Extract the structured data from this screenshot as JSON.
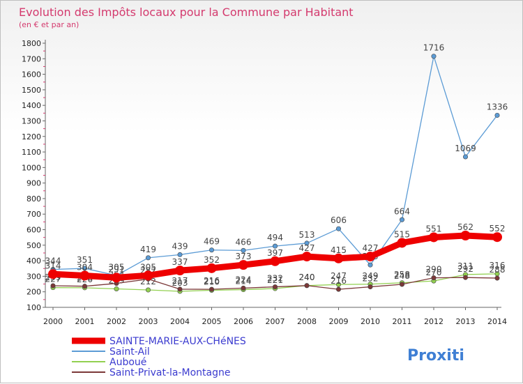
{
  "chart_data": {
    "type": "line",
    "title": "Evolution des Impôts locaux pour la Commune par Habitant",
    "subtitle": "(en € et par an)",
    "xlabel": "",
    "ylabel": "",
    "ylim": [
      100,
      1800
    ],
    "yticks": [
      100,
      200,
      300,
      400,
      500,
      600,
      700,
      800,
      900,
      1000,
      1100,
      1200,
      1300,
      1400,
      1500,
      1600,
      1700,
      1800
    ],
    "grid": false,
    "legend_position": "bottom-left",
    "categories": [
      "2000",
      "2001",
      "2002",
      "2003",
      "2004",
      "2005",
      "2006",
      "2007",
      "2008",
      "2009",
      "2010",
      "2011",
      "2012",
      "2013",
      "2014"
    ],
    "series": [
      {
        "name": "SAINTE-MARIE-AUX-CHéNES",
        "color": "#ee0000",
        "values": [
          314,
          304,
          291,
          305,
          337,
          352,
          373,
          397,
          427,
          415,
          427,
          515,
          551,
          562,
          552
        ]
      },
      {
        "name": "Saint-Ail",
        "color": "#5b9bd5",
        "values": [
          344,
          351,
          305,
          419,
          439,
          469,
          466,
          494,
          513,
          606,
          373,
          664,
          1716,
          1069,
          1336
        ]
      },
      {
        "name": "Auboué",
        "color": "#92d050",
        "values": [
          227,
          226,
          219,
          212,
          203,
          210,
          214,
          221,
          240,
          247,
          249,
          258,
          270,
          311,
          316
        ]
      },
      {
        "name": "Saint-Privat-la-Montagne",
        "color": "#7b3838",
        "values": [
          239,
          236,
          254,
          282,
          217,
          216,
          224,
          232,
          240,
          216,
          232,
          248,
          290,
          292,
          288
        ]
      }
    ]
  },
  "logo": {
    "text": "Proxiti",
    "colors": [
      "#3f7fd4",
      "#f39c12",
      "#2e8b57",
      "#e74c3c"
    ]
  }
}
